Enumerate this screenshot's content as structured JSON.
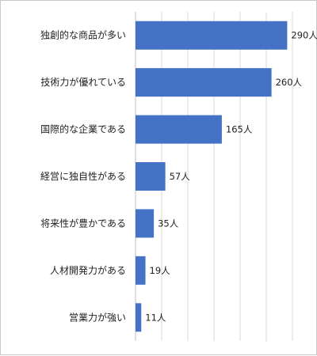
{
  "chart_data": {
    "type": "bar",
    "orientation": "horizontal",
    "categories": [
      "独創的な商品が多い",
      "技術力が優れている",
      "国際的な企業である",
      "経営に独自性がある",
      "将来性が豊かである",
      "人材開発力がある",
      "営業力が強い"
    ],
    "values": [
      290,
      260,
      165,
      57,
      35,
      19,
      11
    ],
    "value_labels": [
      "290人",
      "260人",
      "165人",
      "57人",
      "35人",
      "19人",
      "11人"
    ],
    "unit": "人",
    "xlim": [
      0,
      300
    ],
    "grid": true,
    "bar_color": "#4472C4"
  }
}
